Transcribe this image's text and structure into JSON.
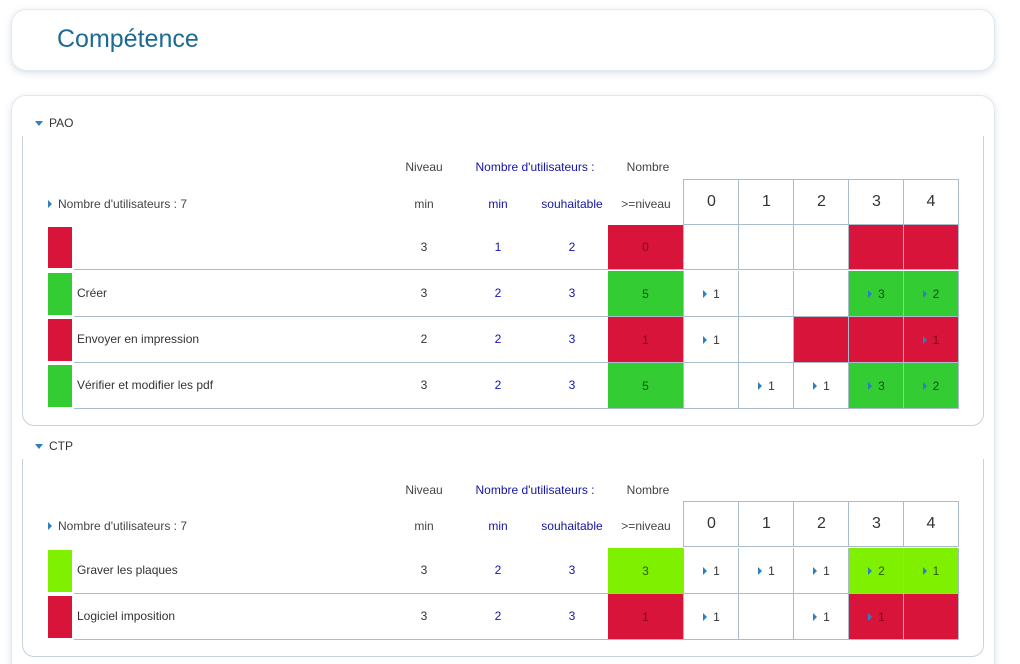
{
  "page": {
    "title": "Compétence"
  },
  "columns": {
    "niveau_top": "Niveau",
    "niveau_bottom": "min",
    "users_top": "Nombre d'utilisateurs :",
    "users_min": "min",
    "users_souhaitable": "souhaitable",
    "count_top": "Nombre",
    "count_bottom": ">=niveau",
    "levels": [
      "0",
      "1",
      "2",
      "3",
      "4"
    ]
  },
  "colors": {
    "red": "#d8143a",
    "green": "#33cc33",
    "lime": "#7ff000",
    "accent": "#2d7fc4",
    "title": "#1d6a94"
  },
  "sections": [
    {
      "name": "PAO",
      "users_label": "Nombre d'utilisateurs : 7",
      "rows": [
        {
          "label": "",
          "status": "red",
          "niveau_min": "3",
          "users_min": "1",
          "users_souhaitable": "2",
          "count": "0",
          "levels": [
            {
              "v": "",
              "c": ""
            },
            {
              "v": "",
              "c": ""
            },
            {
              "v": "",
              "c": ""
            },
            {
              "v": "",
              "c": "red"
            },
            {
              "v": "",
              "c": "red"
            }
          ]
        },
        {
          "label": "Créer",
          "status": "green",
          "niveau_min": "3",
          "users_min": "2",
          "users_souhaitable": "3",
          "count": "5",
          "levels": [
            {
              "v": "1",
              "c": ""
            },
            {
              "v": "",
              "c": ""
            },
            {
              "v": "",
              "c": ""
            },
            {
              "v": "3",
              "c": "green"
            },
            {
              "v": "2",
              "c": "green"
            }
          ]
        },
        {
          "label": "Envoyer en impression",
          "status": "red",
          "niveau_min": "2",
          "users_min": "2",
          "users_souhaitable": "3",
          "count": "1",
          "levels": [
            {
              "v": "1",
              "c": ""
            },
            {
              "v": "",
              "c": ""
            },
            {
              "v": "",
              "c": "red"
            },
            {
              "v": "",
              "c": "red"
            },
            {
              "v": "1",
              "c": "red"
            }
          ]
        },
        {
          "label": "Vérifier et modifier les pdf",
          "status": "green",
          "niveau_min": "3",
          "users_min": "2",
          "users_souhaitable": "3",
          "count": "5",
          "levels": [
            {
              "v": "",
              "c": ""
            },
            {
              "v": "1",
              "c": ""
            },
            {
              "v": "1",
              "c": ""
            },
            {
              "v": "3",
              "c": "green"
            },
            {
              "v": "2",
              "c": "green"
            }
          ]
        }
      ]
    },
    {
      "name": "CTP",
      "users_label": "Nombre d'utilisateurs : 7",
      "rows": [
        {
          "label": "Graver les plaques",
          "status": "lime",
          "niveau_min": "3",
          "users_min": "2",
          "users_souhaitable": "3",
          "count": "3",
          "levels": [
            {
              "v": "1",
              "c": ""
            },
            {
              "v": "1",
              "c": ""
            },
            {
              "v": "1",
              "c": ""
            },
            {
              "v": "2",
              "c": "lime"
            },
            {
              "v": "1",
              "c": "lime"
            }
          ]
        },
        {
          "label": "Logiciel imposition",
          "status": "red",
          "niveau_min": "3",
          "users_min": "2",
          "users_souhaitable": "3",
          "count": "1",
          "levels": [
            {
              "v": "1",
              "c": ""
            },
            {
              "v": "",
              "c": ""
            },
            {
              "v": "1",
              "c": ""
            },
            {
              "v": "1",
              "c": "red"
            },
            {
              "v": "",
              "c": "red"
            }
          ]
        }
      ]
    }
  ]
}
